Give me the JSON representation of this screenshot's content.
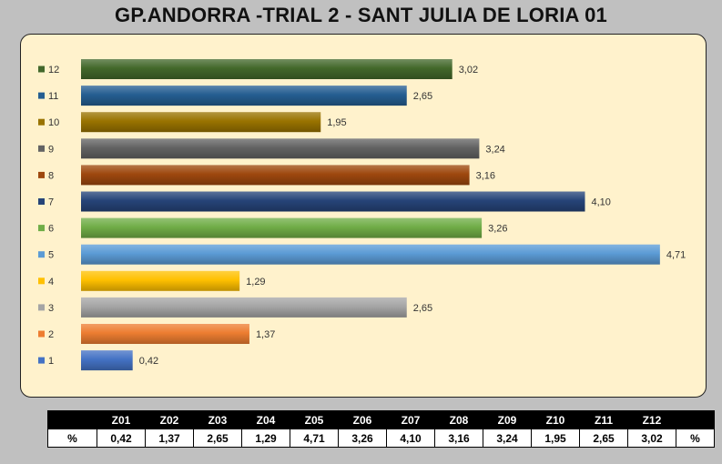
{
  "title": "GP.ANDORRA -TRIAL 2 - SANT JULIA DE LORIA 01",
  "chart_data": {
    "type": "bar",
    "orientation": "horizontal",
    "categories": [
      "1",
      "2",
      "3",
      "4",
      "5",
      "6",
      "7",
      "8",
      "9",
      "10",
      "11",
      "12"
    ],
    "values": [
      0.42,
      1.37,
      2.65,
      1.29,
      4.71,
      3.26,
      4.1,
      3.16,
      3.24,
      1.95,
      2.65,
      3.02
    ],
    "value_labels": [
      "0,42",
      "1,37",
      "2,65",
      "1,29",
      "4,71",
      "3,26",
      "4,10",
      "3,16",
      "3,24",
      "1,95",
      "2,65",
      "3,02"
    ],
    "colors": [
      "#4472c4",
      "#ed7d31",
      "#a5a5a5",
      "#ffc000",
      "#5b9bd5",
      "#70ad47",
      "#264478",
      "#9e480e",
      "#636363",
      "#997300",
      "#255e91",
      "#43682b"
    ],
    "xlim": [
      0,
      5
    ],
    "grid": false,
    "legend": "left",
    "background": "#fff2cc"
  },
  "table": {
    "header": [
      "",
      "Z01",
      "Z02",
      "Z03",
      "Z04",
      "Z05",
      "Z06",
      "Z07",
      "Z08",
      "Z09",
      "Z10",
      "Z11",
      "Z12",
      ""
    ],
    "row": [
      "%",
      "0,42",
      "1,37",
      "2,65",
      "1,29",
      "4,71",
      "3,26",
      "4,10",
      "3,16",
      "3,24",
      "1,95",
      "2,65",
      "3,02",
      "%"
    ]
  }
}
